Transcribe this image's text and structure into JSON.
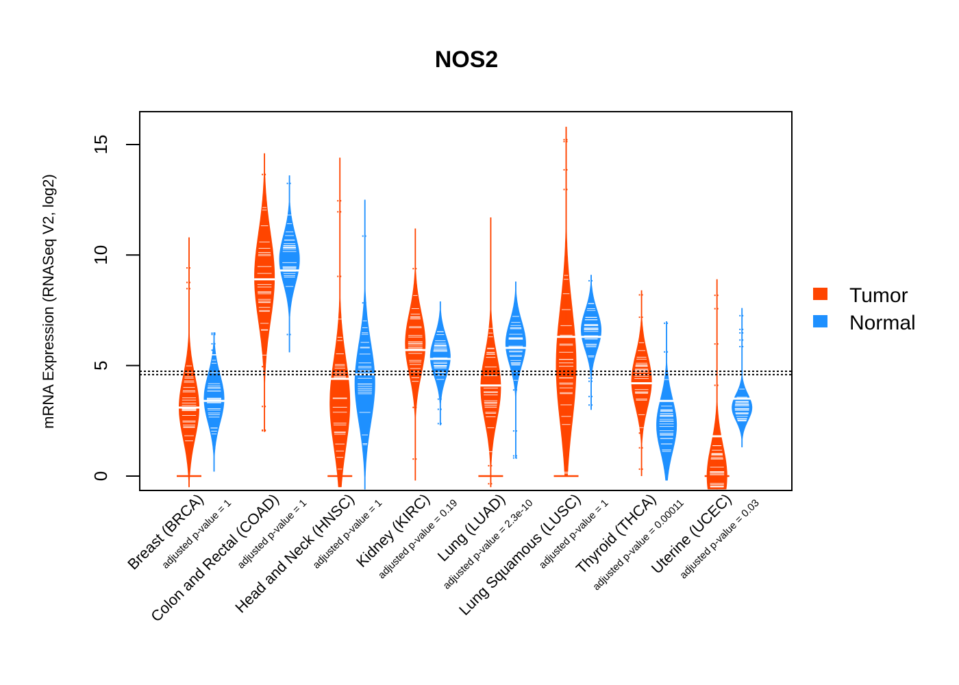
{
  "chart_data": {
    "type": "violin",
    "title": "NOS2",
    "xlabel": "",
    "ylabel": "mRNA Expression (RNASeq V2, log2)",
    "ylim": [
      -0.65,
      16.5
    ],
    "yticks": [
      0,
      5,
      10,
      15
    ],
    "grid": false,
    "legend_position": "right",
    "reference_lines": [
      {
        "label": "overall tumor median",
        "value": 4.74,
        "style": "dotted"
      },
      {
        "label": "overall normal median",
        "value": 4.59,
        "style": "dotted"
      }
    ],
    "series_colors": {
      "Tumor": "#ff4500",
      "Normal": "#1e90ff"
    },
    "legend": [
      {
        "label": "Tumor",
        "color": "#ff4500"
      },
      {
        "label": "Normal",
        "color": "#1e90ff"
      }
    ],
    "categories": [
      {
        "label": "Breast (BRCA)",
        "pvalue_label": "adjusted p-value = 1",
        "tumor": {
          "min": -0.5,
          "max": 10.8,
          "median": 3.1,
          "peak": 3.1,
          "spread": 1.4,
          "zero_bar": true
        },
        "normal": {
          "min": 0.2,
          "max": 6.5,
          "median": 3.4,
          "peak": 3.5,
          "spread": 1.1,
          "zero_bar": false
        }
      },
      {
        "label": "Colon and Rectal (COAD)",
        "pvalue_label": "adjusted p-value = 1",
        "tumor": {
          "min": 2.0,
          "max": 14.6,
          "median": 8.9,
          "peak": 9.0,
          "spread": 2.0,
          "zero_bar": false
        },
        "normal": {
          "min": 5.6,
          "max": 13.6,
          "median": 9.3,
          "peak": 9.8,
          "spread": 1.1,
          "zero_bar": false
        }
      },
      {
        "label": "Head and Neck (HNSC)",
        "pvalue_label": "adjusted p-value = 1",
        "tumor": {
          "min": -0.5,
          "max": 14.4,
          "median": 4.4,
          "peak": 3.3,
          "spread": 2.0,
          "zero_bar": true
        },
        "normal": {
          "min": -0.6,
          "max": 12.5,
          "median": 4.6,
          "peak": 4.2,
          "spread": 1.8,
          "zero_bar": false
        }
      },
      {
        "label": "Kidney (KIRC)",
        "pvalue_label": "adjusted p-value = 0.19",
        "tumor": {
          "min": -0.2,
          "max": 11.2,
          "median": 5.7,
          "peak": 6.0,
          "spread": 1.4,
          "zero_bar": false
        },
        "normal": {
          "min": 2.3,
          "max": 7.9,
          "median": 5.3,
          "peak": 5.4,
          "spread": 0.9,
          "zero_bar": false
        }
      },
      {
        "label": "Lung (LUAD)",
        "pvalue_label": "adjusted p-value = 2.3e-10",
        "tumor": {
          "min": -0.5,
          "max": 11.7,
          "median": 4.1,
          "peak": 4.0,
          "spread": 1.5,
          "zero_bar": true
        },
        "normal": {
          "min": 0.8,
          "max": 8.8,
          "median": 5.8,
          "peak": 6.0,
          "spread": 1.0,
          "zero_bar": false
        }
      },
      {
        "label": "Lung Squamous (LUSC)",
        "pvalue_label": "adjusted p-value = 1",
        "tumor": {
          "min": 0.0,
          "max": 15.8,
          "median": 6.3,
          "peak": 5.0,
          "spread": 2.6,
          "zero_bar": true
        },
        "normal": {
          "min": 3.0,
          "max": 9.1,
          "median": 6.3,
          "peak": 6.6,
          "spread": 0.9,
          "zero_bar": false
        }
      },
      {
        "label": "Thyroid (THCA)",
        "pvalue_label": "adjusted p-value = 0.00011",
        "tumor": {
          "min": 0.0,
          "max": 8.4,
          "median": 4.2,
          "peak": 4.3,
          "spread": 1.2,
          "zero_bar": false
        },
        "normal": {
          "min": -0.2,
          "max": 7.0,
          "median": 3.4,
          "peak": 2.3,
          "spread": 1.2,
          "zero_bar": false
        }
      },
      {
        "label": "Uterine (UCEC)",
        "pvalue_label": "adjusted p-value = 0.03",
        "tumor": {
          "min": -0.6,
          "max": 8.9,
          "median": 1.8,
          "peak": 0.0,
          "spread": 1.4,
          "zero_bar": true
        },
        "normal": {
          "min": 1.3,
          "max": 7.6,
          "median": 3.5,
          "peak": 3.1,
          "spread": 0.6,
          "zero_bar": false
        }
      }
    ]
  }
}
